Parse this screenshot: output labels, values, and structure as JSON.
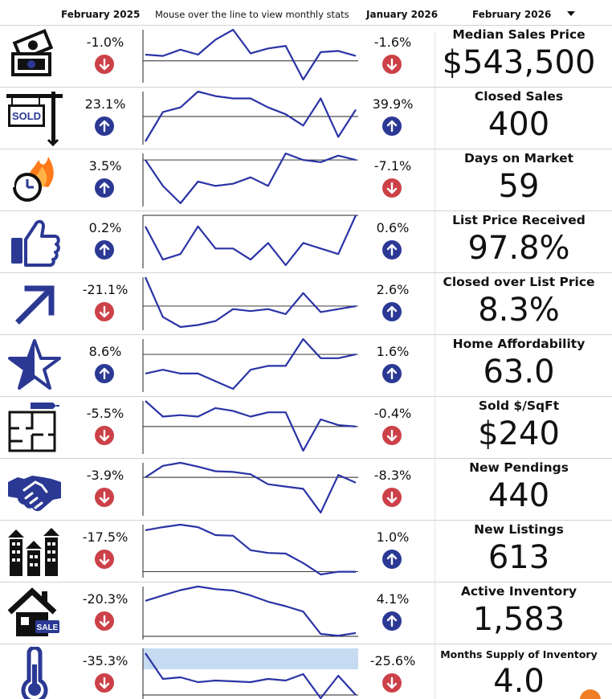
{
  "header": {
    "prev_period": "February 2025",
    "instructions": "Mouse over the line to view monthly stats",
    "cur_period": "January 2026",
    "selected_period": "February 2026"
  },
  "colors": {
    "line": "#2a33a5",
    "up_arrow": "#2b3994",
    "down_arrow": "#cc4148",
    "highlight_band": "#c6dbf2"
  },
  "metrics": [
    {
      "name": "Median Sales Price",
      "value": "$543,500",
      "prev_change": "-1.0%",
      "prev_dir": "down",
      "cur_change": "-1.6%",
      "cur_dir": "down",
      "icon": "money-icon",
      "trend": [
        62,
        61,
        66,
        62,
        74,
        82,
        63,
        67,
        69,
        42,
        64,
        65,
        61
      ],
      "baseline": 57
    },
    {
      "name": "Closed Sales",
      "value": "400",
      "prev_change": "23.1%",
      "prev_dir": "up",
      "cur_change": "39.9%",
      "cur_dir": "up",
      "icon": "sold-sign-icon",
      "trend": [
        47,
        60,
        62,
        69,
        67,
        66,
        66,
        62,
        59,
        54,
        66,
        49,
        61
      ],
      "baseline": 58
    },
    {
      "name": "Days on Market",
      "value": "59",
      "prev_change": "3.5%",
      "prev_dir": "up",
      "cur_change": "-7.1%",
      "cur_dir": "down",
      "icon": "clock-fire-icon",
      "trend": [
        70,
        58,
        50,
        60,
        58,
        59,
        62,
        58,
        73,
        70,
        69,
        72,
        70
      ],
      "baseline": 70
    },
    {
      "name": "List Price Received",
      "value": "97.8%",
      "prev_change": "0.2%",
      "prev_dir": "up",
      "cur_change": "0.6%",
      "cur_dir": "up",
      "icon": "thumbs-up-icon",
      "trend": [
        97.7,
        97.4,
        97.45,
        97.7,
        97.5,
        97.5,
        97.4,
        97.55,
        97.35,
        97.55,
        97.5,
        97.45,
        97.8
      ],
      "baseline": 97.8
    },
    {
      "name": "Closed over List Price",
      "value": "8.3%",
      "prev_change": "-21.1%",
      "prev_dir": "down",
      "cur_change": "2.6%",
      "cur_dir": "up",
      "icon": "arrow-up-right-icon",
      "trend": [
        12,
        8,
        7,
        7.2,
        7.6,
        8.8,
        8.6,
        8.8,
        8.3,
        10.4,
        8.5,
        8.8,
        9.1
      ],
      "baseline": 9.1
    },
    {
      "name": "Home Affordability",
      "value": "63.0",
      "prev_change": "8.6%",
      "prev_dir": "up",
      "cur_change": "1.6%",
      "cur_dir": "up",
      "icon": "star-icon",
      "trend": [
        56,
        57,
        56,
        56,
        54,
        52,
        57,
        58,
        58,
        65,
        60,
        60,
        61
      ],
      "baseline": 61
    },
    {
      "name": "Sold $/SqFt",
      "value": "$240",
      "prev_change": "-5.5%",
      "prev_dir": "down",
      "cur_change": "-0.4%",
      "cur_dir": "down",
      "icon": "floor-plan-icon",
      "trend": [
        255,
        244,
        245,
        244,
        250,
        248,
        244,
        247,
        247,
        220,
        242,
        238,
        237
      ],
      "baseline": 237
    },
    {
      "name": "New Pendings",
      "value": "440",
      "prev_change": "-3.9%",
      "prev_dir": "down",
      "cur_change": "-8.3%",
      "cur_dir": "down",
      "icon": "handshake-icon",
      "trend": [
        479,
        494,
        498,
        493,
        487,
        486,
        483,
        470,
        467,
        464,
        433,
        482,
        472
      ],
      "baseline": 479
    },
    {
      "name": "New Listings",
      "value": "613",
      "prev_change": "-17.5%",
      "prev_dir": "down",
      "cur_change": "1.0%",
      "cur_dir": "up",
      "icon": "houses-icon",
      "trend": [
        740,
        750,
        758,
        750,
        724,
        722,
        675,
        666,
        664,
        633,
        596,
        605,
        605
      ],
      "baseline": 605
    },
    {
      "name": "Active Inventory",
      "value": "1,583",
      "prev_change": "-20.3%",
      "prev_dir": "down",
      "cur_change": "4.1%",
      "cur_dir": "up",
      "icon": "house-sale-icon",
      "trend": [
        1980,
        2040,
        2100,
        2140,
        2110,
        2095,
        2040,
        1970,
        1920,
        1860,
        1610,
        1590,
        1620
      ],
      "baseline": 1583
    },
    {
      "name": "Months Supply of Inventory",
      "value": "4.0",
      "prev_change": "-35.3%",
      "prev_dir": "down",
      "cur_change": "-25.6%",
      "cur_dir": "down",
      "icon": "thermometer-icon",
      "trend": [
        6.6,
        5.0,
        5.1,
        4.8,
        4.9,
        4.85,
        4.8,
        5.0,
        4.9,
        5.3,
        3.8,
        5.2,
        4.0
      ],
      "baseline": 4.0,
      "band": [
        6.9,
        5.6
      ],
      "small_title": true
    }
  ]
}
